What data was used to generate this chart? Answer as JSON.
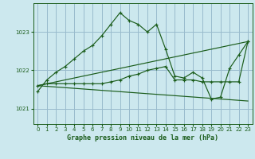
{
  "title": "Graphe pression niveau de la mer (hPa)",
  "bg_color": "#cce8ee",
  "grid_color": "#99bbcc",
  "line_color": "#1a5c1a",
  "ylim": [
    1020.6,
    1023.75
  ],
  "yticks": [
    1021,
    1022,
    1023
  ],
  "xlim": [
    -0.5,
    23.5
  ],
  "xticks": [
    0,
    1,
    2,
    3,
    4,
    5,
    6,
    7,
    8,
    9,
    10,
    11,
    12,
    13,
    14,
    15,
    16,
    17,
    18,
    19,
    20,
    21,
    22,
    23
  ],
  "series1_x": [
    0,
    1,
    2,
    3,
    4,
    5,
    6,
    7,
    8,
    9,
    10,
    11,
    12,
    13,
    14,
    15,
    16,
    17,
    18,
    19,
    20,
    21,
    22,
    23
  ],
  "series1_y": [
    1021.45,
    1021.75,
    1021.95,
    1022.1,
    1022.3,
    1022.5,
    1022.65,
    1022.9,
    1023.2,
    1023.5,
    1023.3,
    1023.2,
    1023.0,
    1023.2,
    1022.55,
    1021.85,
    1021.8,
    1021.95,
    1021.8,
    1021.25,
    1021.3,
    1022.05,
    1022.4,
    1022.75
  ],
  "series2_x": [
    0,
    1,
    2,
    3,
    4,
    5,
    6,
    7,
    8,
    9,
    10,
    11,
    12,
    13,
    14,
    15,
    16,
    17,
    18,
    19,
    20,
    21,
    22,
    23
  ],
  "series2_y": [
    1021.6,
    1021.65,
    1021.65,
    1021.65,
    1021.65,
    1021.65,
    1021.65,
    1021.65,
    1021.7,
    1021.75,
    1021.85,
    1021.9,
    1022.0,
    1022.05,
    1022.1,
    1021.75,
    1021.75,
    1021.75,
    1021.7,
    1021.7,
    1021.7,
    1021.7,
    1021.7,
    1022.75
  ],
  "series3_x": [
    0,
    23
  ],
  "series3_y": [
    1021.6,
    1022.75
  ],
  "series4_x": [
    0,
    23
  ],
  "series4_y": [
    1021.6,
    1021.2
  ]
}
